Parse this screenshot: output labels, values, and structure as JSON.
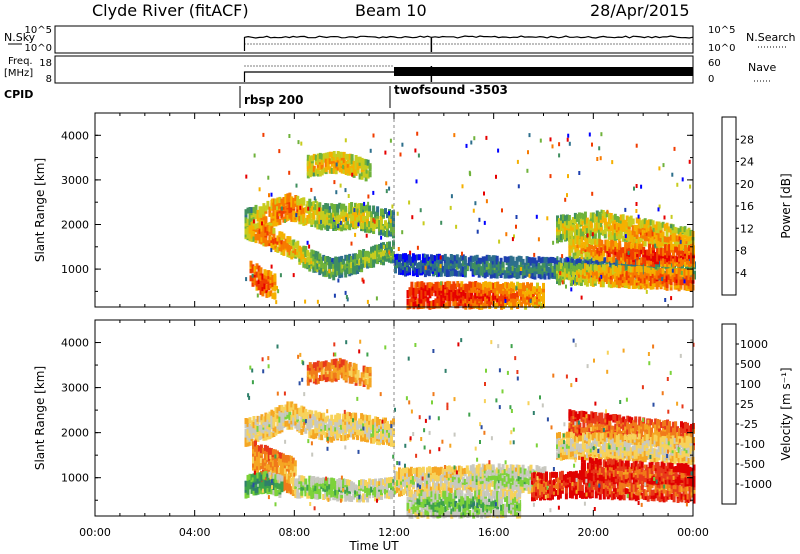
{
  "header": {
    "station": "Clyde River (fitACF)",
    "beam": "Beam 10",
    "date": "28/Apr/2015"
  },
  "strip_labels": {
    "nsky": "N.Sky",
    "nsky_ticks": [
      "10^5",
      "10^0"
    ],
    "nsearch": "N.Search",
    "nsearch_ticks": [
      "10^5",
      "10^0"
    ],
    "freq": "Freq.",
    "freq_unit": "[MHz]",
    "freq_ticks": [
      "18",
      "8"
    ],
    "nave": "Nave",
    "nave_ticks": [
      "60",
      "0"
    ],
    "cpid": "CPID",
    "programs": [
      "rbsp 200",
      "twofsound -3503"
    ]
  },
  "chart_data": [
    {
      "type": "heatmap",
      "xlabel": "Time UT",
      "ylabel": "Slant Range [km]",
      "x_ticks": [
        "00:00",
        "04:00",
        "08:00",
        "12:00",
        "16:00",
        "20:00",
        "00:00"
      ],
      "y_ticks": [
        "1000",
        "2000",
        "3000",
        "4000"
      ],
      "ylim": [
        150,
        4500
      ],
      "colorbar": {
        "label": "Power [dB]",
        "ticks": [
          "4",
          "8",
          "12",
          "16",
          "20",
          "24",
          "28"
        ],
        "colors": [
          "#0000ff",
          "#1c3faf",
          "#2d6f8c",
          "#3f8f5f",
          "#6fb23b",
          "#c8cc1e",
          "#f5b000",
          "#f77a00",
          "#f03c00",
          "#e60000"
        ]
      },
      "bands": [
        {
          "hours": [
            6.0,
            12.0
          ],
          "center": [
            2050,
            2200,
            2400,
            2250,
            2150,
            2200,
            2100,
            2000
          ],
          "width": 220,
          "level": [
            4,
            7,
            8,
            6,
            5,
            6,
            5,
            4
          ]
        },
        {
          "hours": [
            6.0,
            12.0
          ],
          "center": [
            1900,
            1750,
            1500,
            1200,
            1000,
            1100,
            1300,
            1400
          ],
          "width": 180,
          "level": [
            6,
            8,
            7,
            5,
            4,
            4,
            5,
            4
          ]
        },
        {
          "hours": [
            6.2,
            7.2
          ],
          "center": [
            900,
            700,
            600
          ],
          "width": 260,
          "level": [
            8,
            9,
            7
          ]
        },
        {
          "hours": [
            8.5,
            11.0
          ],
          "center": [
            3300,
            3400,
            3200
          ],
          "width": 150,
          "level": [
            6,
            7,
            5
          ]
        },
        {
          "hours": [
            12.5,
            18.0
          ],
          "center": [
            400,
            420,
            400,
            380
          ],
          "width": 250,
          "level": [
            9,
            9,
            8,
            7
          ]
        },
        {
          "hours": [
            12.0,
            24.0
          ],
          "center": [
            1100,
            1050,
            1000,
            1000
          ],
          "width": 200,
          "level": [
            2,
            3,
            3,
            4
          ]
        },
        {
          "hours": [
            18.5,
            24.0
          ],
          "center": [
            1900,
            2000,
            1800,
            1600
          ],
          "width": 260,
          "level": [
            5,
            6,
            7,
            6
          ]
        },
        {
          "hours": [
            19.0,
            24.0
          ],
          "center": [
            1500,
            1400,
            1300,
            1300
          ],
          "width": 180,
          "level": [
            6,
            8,
            9,
            8
          ]
        },
        {
          "hours": [
            18.5,
            24.0
          ],
          "center": [
            900,
            850,
            800,
            750
          ],
          "width": 200,
          "level": [
            5,
            7,
            8,
            8
          ]
        }
      ]
    },
    {
      "type": "heatmap",
      "xlabel": "Time UT",
      "ylabel": "Slant Range [km]",
      "x_ticks": [
        "00:00",
        "04:00",
        "08:00",
        "12:00",
        "16:00",
        "20:00",
        "00:00"
      ],
      "y_ticks": [
        "1000",
        "2000",
        "3000",
        "4000"
      ],
      "ylim": [
        150,
        4500
      ],
      "colorbar": {
        "label": "Velocity [m s⁻¹]",
        "ticks": [
          "1000",
          "500",
          "100",
          "25",
          "-25",
          "-100",
          "-500",
          "-1000"
        ],
        "colors": [
          "#2b4ea3",
          "#2f7f6a",
          "#3ea24b",
          "#7cd23a",
          "#c8c8c0",
          "#f7d25a",
          "#f5a623",
          "#f07a1a",
          "#e8381a",
          "#e00000"
        ]
      },
      "bands": [
        {
          "hours": [
            6.0,
            12.0
          ],
          "center": [
            2000,
            2150,
            2400,
            2200,
            2100,
            2150,
            2050,
            2000
          ],
          "width": 260,
          "level": [
            4,
            4,
            4,
            4,
            4,
            4,
            4,
            4
          ]
        },
        {
          "hours": [
            6.3,
            8.0
          ],
          "center": [
            1400,
            1200,
            1000
          ],
          "width": 350,
          "level": [
            6,
            6,
            5
          ]
        },
        {
          "hours": [
            6.0,
            7.5
          ],
          "center": [
            800,
            900,
            800
          ],
          "width": 200,
          "level": [
            1,
            1,
            2
          ]
        },
        {
          "hours": [
            8.0,
            12.0
          ],
          "center": [
            800,
            750,
            700,
            800
          ],
          "width": 180,
          "level": [
            3,
            2,
            3,
            3
          ]
        },
        {
          "hours": [
            8.5,
            11.0
          ],
          "center": [
            3300,
            3400,
            3200
          ],
          "width": 150,
          "level": [
            6,
            6,
            5
          ]
        },
        {
          "hours": [
            12.0,
            18.0
          ],
          "center": [
            900,
            950,
            1000,
            950
          ],
          "width": 250,
          "level": [
            4,
            4,
            3,
            3
          ]
        },
        {
          "hours": [
            12.5,
            17.0
          ],
          "center": [
            400,
            420,
            400
          ],
          "width": 250,
          "level": [
            3,
            2,
            3
          ]
        },
        {
          "hours": [
            19.0,
            24.0
          ],
          "center": [
            2200,
            2100,
            2000,
            1900
          ],
          "width": 230,
          "level": [
            7,
            7,
            6,
            7
          ]
        },
        {
          "hours": [
            18.5,
            24.0
          ],
          "center": [
            1700,
            1700,
            1650,
            1600
          ],
          "width": 250,
          "level": [
            4,
            4,
            4,
            4
          ]
        },
        {
          "hours": [
            17.5,
            24.0
          ],
          "center": [
            800,
            850,
            800,
            750
          ],
          "width": 230,
          "level": [
            7,
            8,
            7,
            7
          ]
        },
        {
          "hours": [
            19.5,
            24.0
          ],
          "center": [
            1200,
            1150,
            1100,
            1050
          ],
          "width": 160,
          "level": [
            8,
            7,
            7,
            8
          ]
        }
      ]
    }
  ]
}
